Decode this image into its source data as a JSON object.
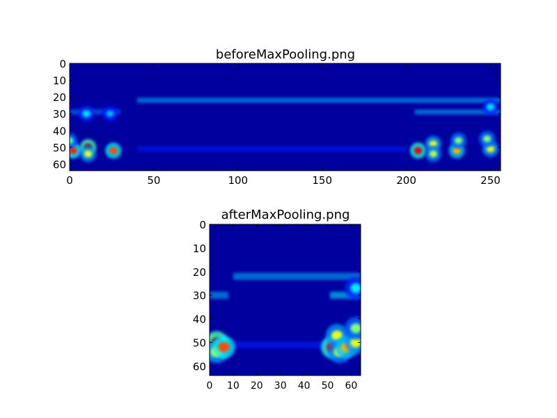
{
  "chart_data": [
    {
      "type": "heatmap",
      "title": "beforeMaxPooling.png",
      "colormap": "jet",
      "xlim": [
        0,
        256
      ],
      "ylim": [
        64,
        0
      ],
      "xticks": [
        0,
        50,
        100,
        150,
        200,
        250
      ],
      "yticks": [
        0,
        10,
        20,
        30,
        40,
        50,
        60
      ],
      "background_value": 0.0,
      "bands": [
        {
          "x": [
            40,
            256
          ],
          "y": 22,
          "intensity": 0.3
        },
        {
          "x": [
            0,
            30
          ],
          "y": 29,
          "intensity": 0.25
        },
        {
          "x": [
            205,
            256
          ],
          "y": 29,
          "intensity": 0.3
        },
        {
          "x": [
            40,
            200
          ],
          "y": 51,
          "intensity": 0.15
        }
      ],
      "hotspots": [
        {
          "x": 2,
          "y": 52,
          "intensity": 0.85
        },
        {
          "x": 0,
          "y": 46,
          "intensity": 0.45
        },
        {
          "x": 11,
          "y": 50,
          "intensity": 1.0
        },
        {
          "x": 11,
          "y": 54,
          "intensity": 0.6
        },
        {
          "x": 10,
          "y": 30,
          "intensity": 0.35
        },
        {
          "x": 26,
          "y": 52,
          "intensity": 0.8
        },
        {
          "x": 24,
          "y": 30,
          "intensity": 0.3
        },
        {
          "x": 207,
          "y": 52,
          "intensity": 0.9
        },
        {
          "x": 216,
          "y": 48,
          "intensity": 0.6
        },
        {
          "x": 216,
          "y": 54,
          "intensity": 0.55
        },
        {
          "x": 230,
          "y": 52,
          "intensity": 0.7
        },
        {
          "x": 231,
          "y": 46,
          "intensity": 0.5
        },
        {
          "x": 250,
          "y": 51,
          "intensity": 0.6
        },
        {
          "x": 248,
          "y": 45,
          "intensity": 0.5
        },
        {
          "x": 250,
          "y": 26,
          "intensity": 0.35
        }
      ]
    },
    {
      "type": "heatmap",
      "title": "afterMaxPooling.png",
      "colormap": "jet",
      "xlim": [
        0,
        64
      ],
      "ylim": [
        64,
        0
      ],
      "xticks": [
        0,
        10,
        20,
        30,
        40,
        50,
        60
      ],
      "yticks": [
        0,
        10,
        20,
        30,
        40,
        50,
        60
      ],
      "background_value": 0.0,
      "bands": [
        {
          "x": [
            10,
            64
          ],
          "y": 22,
          "intensity": 0.3
        },
        {
          "x": [
            0,
            8
          ],
          "y": 30,
          "intensity": 0.3
        },
        {
          "x": [
            51,
            64
          ],
          "y": 30,
          "intensity": 0.35
        },
        {
          "x": [
            10,
            50
          ],
          "y": 51,
          "intensity": 0.15
        }
      ],
      "hotspots": [
        {
          "x": 1,
          "y": 52,
          "intensity": 0.85
        },
        {
          "x": 3,
          "y": 50,
          "intensity": 1.0
        },
        {
          "x": 3,
          "y": 54,
          "intensity": 0.6
        },
        {
          "x": 6,
          "y": 52,
          "intensity": 0.8
        },
        {
          "x": 52,
          "y": 52,
          "intensity": 0.9
        },
        {
          "x": 54,
          "y": 47,
          "intensity": 0.6
        },
        {
          "x": 55,
          "y": 54,
          "intensity": 0.55
        },
        {
          "x": 58,
          "y": 52,
          "intensity": 0.7
        },
        {
          "x": 62,
          "y": 50,
          "intensity": 0.6
        },
        {
          "x": 62,
          "y": 44,
          "intensity": 0.5
        },
        {
          "x": 62,
          "y": 27,
          "intensity": 0.35
        }
      ]
    }
  ]
}
